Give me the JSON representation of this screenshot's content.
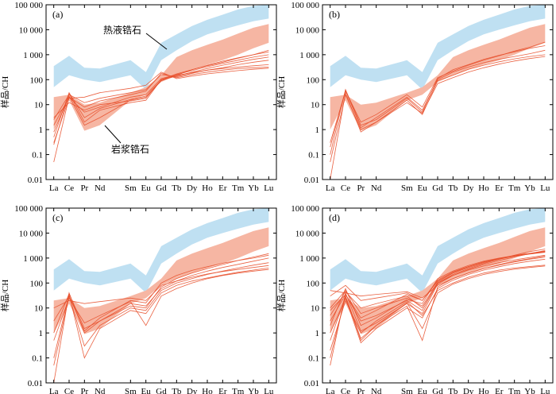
{
  "elements": [
    "La",
    "Ce",
    "Pr",
    "Nd",
    "Sm",
    "Eu",
    "Gd",
    "Tb",
    "Dy",
    "Ho",
    "Er",
    "Tm",
    "Yb",
    "Lu"
  ],
  "x_positions": [
    1,
    2,
    3,
    4,
    6,
    7,
    8,
    9,
    10,
    11,
    12,
    13,
    14,
    15
  ],
  "y_ticks": [
    {
      "v": 0.01,
      "label": "0.01"
    },
    {
      "v": 0.1,
      "label": "0.1"
    },
    {
      "v": 1,
      "label": "1"
    },
    {
      "v": 10,
      "label": "10"
    },
    {
      "v": 100,
      "label": "100"
    },
    {
      "v": 1000,
      "label": "1 000"
    },
    {
      "v": 10000,
      "label": "10 000"
    },
    {
      "v": 100000,
      "label": "100 000"
    }
  ],
  "ylabel": "样品/CH",
  "colors": {
    "hydro_field": "#bfe0f2",
    "magma_field": "#f6b6a3",
    "sample_line": "#e8502c",
    "axis": "#000000"
  },
  "annotations": {
    "hydrothermal": "热液锆石",
    "magmatic": "岩浆锆石"
  },
  "chart_data": [
    {
      "type": "line",
      "panel_label": "(a)",
      "ylim": [
        0.01,
        100000
      ],
      "scale": "log",
      "fields": {
        "hydrothermal": {
          "upper": [
            350,
            900,
            300,
            280,
            600,
            200,
            3000,
            6500,
            14000,
            25000,
            40000,
            65000,
            90000,
            100000
          ],
          "lower": [
            50,
            150,
            100,
            80,
            150,
            40,
            600,
            1500,
            3500,
            6500,
            10000,
            15000,
            22000,
            28000
          ]
        },
        "magmatic": {
          "upper": [
            20,
            25,
            10,
            12,
            30,
            50,
            150,
            800,
            1500,
            2500,
            4000,
            7000,
            12000,
            17000
          ],
          "lower": [
            1,
            15,
            0.9,
            1.5,
            15,
            25,
            80,
            150,
            250,
            400,
            600,
            1000,
            1800,
            3000
          ]
        }
      },
      "series": [
        {
          "values": [
            0.25,
            28,
            2.0,
            6,
            12,
            15,
            100,
            170,
            250,
            360,
            500,
            720,
            1000,
            1300
          ]
        },
        {
          "values": [
            0.05,
            20,
            5,
            8,
            20,
            25,
            110,
            160,
            230,
            330,
            450,
            600,
            800,
            1000
          ]
        },
        {
          "values": [
            0.5,
            30,
            3,
            7,
            16,
            22,
            95,
            140,
            200,
            280,
            380,
            500,
            650,
            800
          ]
        },
        {
          "values": [
            2.5,
            25,
            12,
            18,
            30,
            40,
            160,
            130,
            180,
            240,
            300,
            400,
            500,
            600
          ]
        },
        {
          "values": [
            1.5,
            20,
            8,
            14,
            25,
            35,
            180,
            120,
            160,
            200,
            240,
            280,
            300,
            320
          ]
        },
        {
          "values": [
            0.3,
            18,
            20,
            30,
            45,
            60,
            200,
            110,
            140,
            170,
            200,
            230,
            260,
            290
          ]
        },
        {
          "values": [
            3,
            12,
            6,
            10,
            14,
            18,
            100,
            150,
            190,
            240,
            280,
            320,
            360,
            400
          ]
        },
        {
          "values": [
            0.8,
            22,
            1.5,
            3,
            15,
            20,
            90,
            150,
            250,
            380,
            550,
            750,
            1000,
            1500
          ]
        }
      ]
    },
    {
      "type": "line",
      "panel_label": "(b)",
      "ylim": [
        0.01,
        100000
      ],
      "scale": "log",
      "fields": {
        "hydrothermal": {
          "upper": [
            350,
            900,
            300,
            280,
            600,
            200,
            3000,
            6500,
            14000,
            25000,
            40000,
            65000,
            90000,
            100000
          ],
          "lower": [
            50,
            150,
            100,
            80,
            150,
            40,
            600,
            1500,
            3500,
            6500,
            10000,
            15000,
            22000,
            28000
          ]
        },
        "magmatic": {
          "upper": [
            20,
            25,
            10,
            12,
            30,
            50,
            150,
            800,
            1500,
            2500,
            4000,
            7000,
            12000,
            17000
          ],
          "lower": [
            1,
            15,
            0.9,
            1.5,
            15,
            25,
            80,
            150,
            250,
            400,
            600,
            1000,
            1800,
            3000
          ]
        }
      },
      "series": [
        {
          "values": [
            0.2,
            38,
            1.2,
            3,
            20,
            6,
            100,
            200,
            320,
            480,
            650,
            850,
            1100,
            1500
          ]
        },
        {
          "values": [
            0.01,
            30,
            0.8,
            2,
            15,
            4,
            90,
            150,
            260,
            380,
            520,
            680,
            850,
            1000
          ]
        },
        {
          "values": [
            0.1,
            40,
            1.5,
            2.5,
            18,
            5,
            110,
            250,
            400,
            650,
            950,
            1300,
            1800,
            2300
          ]
        },
        {
          "values": [
            0.3,
            35,
            2,
            4,
            25,
            8,
            120,
            220,
            380,
            600,
            900,
            1400,
            2000,
            3200
          ]
        },
        {
          "values": [
            0.05,
            25,
            1,
            2,
            12,
            4.5,
            70,
            120,
            200,
            300,
            420,
            560,
            700,
            850
          ]
        }
      ]
    },
    {
      "type": "line",
      "panel_label": "(c)",
      "ylim": [
        0.01,
        100000
      ],
      "scale": "log",
      "fields": {
        "hydrothermal": {
          "upper": [
            350,
            900,
            300,
            280,
            600,
            200,
            3000,
            6500,
            14000,
            25000,
            40000,
            65000,
            90000,
            100000
          ],
          "lower": [
            50,
            150,
            100,
            80,
            150,
            40,
            600,
            1500,
            3500,
            6500,
            10000,
            15000,
            22000,
            28000
          ]
        },
        "magmatic": {
          "upper": [
            20,
            25,
            10,
            12,
            30,
            50,
            150,
            800,
            1500,
            2500,
            4000,
            7000,
            12000,
            17000
          ],
          "lower": [
            1,
            15,
            0.9,
            1.5,
            15,
            25,
            80,
            150,
            250,
            400,
            600,
            1000,
            1800,
            3000
          ]
        }
      },
      "series": [
        {
          "values": [
            0.01,
            40,
            1.0,
            3,
            15,
            12,
            60,
            120,
            200,
            300,
            420,
            560,
            750,
            1000
          ]
        },
        {
          "values": [
            0.05,
            30,
            0.3,
            2,
            10,
            8,
            50,
            100,
            150,
            220,
            300,
            400,
            520,
            650
          ]
        },
        {
          "values": [
            0.1,
            35,
            0.1,
            1.5,
            8,
            6,
            40,
            80,
            120,
            160,
            210,
            270,
            330,
            400
          ]
        },
        {
          "values": [
            1,
            38,
            1.5,
            3,
            12,
            10,
            70,
            150,
            250,
            380,
            550,
            800,
            1100,
            1500
          ]
        },
        {
          "values": [
            10,
            20,
            15,
            18,
            25,
            20,
            80,
            120,
            170,
            230,
            290,
            350,
            420,
            500
          ]
        },
        {
          "values": [
            3,
            30,
            1.2,
            4,
            20,
            16,
            100,
            200,
            320,
            450,
            620,
            800,
            1000,
            1300
          ]
        },
        {
          "values": [
            0.5,
            25,
            2.5,
            5,
            18,
            2,
            30,
            60,
            100,
            150,
            200,
            250,
            300,
            350
          ]
        }
      ]
    },
    {
      "type": "line",
      "panel_label": "(d)",
      "ylim": [
        0.01,
        100000
      ],
      "scale": "log",
      "fields": {
        "hydrothermal": {
          "upper": [
            350,
            900,
            300,
            280,
            600,
            200,
            3000,
            6500,
            14000,
            25000,
            40000,
            65000,
            90000,
            100000
          ],
          "lower": [
            50,
            150,
            100,
            80,
            150,
            40,
            600,
            1500,
            3500,
            6500,
            10000,
            15000,
            22000,
            28000
          ]
        },
        "magmatic": {
          "upper": [
            20,
            25,
            10,
            12,
            30,
            50,
            150,
            800,
            1500,
            2500,
            4000,
            7000,
            12000,
            17000
          ],
          "lower": [
            1,
            15,
            0.9,
            1.5,
            15,
            25,
            80,
            150,
            250,
            400,
            600,
            1000,
            1800,
            3000
          ]
        }
      },
      "series": [
        {
          "values": [
            0.05,
            40,
            1.2,
            2.5,
            15,
            6,
            90,
            200,
            350,
            550,
            800,
            1100,
            1500,
            2000
          ]
        },
        {
          "values": [
            0.5,
            30,
            0.5,
            2,
            12,
            0.5,
            70,
            150,
            250,
            380,
            550,
            750,
            950,
            1200
          ]
        },
        {
          "values": [
            3,
            35,
            3,
            5,
            20,
            8,
            100,
            220,
            380,
            600,
            900,
            1300,
            1800,
            2300
          ]
        },
        {
          "values": [
            10,
            50,
            6,
            10,
            25,
            12,
            110,
            250,
            420,
            650,
            900,
            1200,
            1500,
            1800
          ]
        },
        {
          "values": [
            30,
            80,
            20,
            25,
            40,
            20,
            120,
            260,
            450,
            700,
            950,
            1250,
            1550,
            1900
          ]
        },
        {
          "values": [
            1,
            25,
            0.4,
            1.5,
            10,
            4,
            60,
            130,
            220,
            330,
            450,
            600,
            750,
            900
          ]
        },
        {
          "values": [
            5,
            45,
            10,
            15,
            30,
            10,
            100,
            200,
            330,
            480,
            650,
            850,
            1050,
            1300
          ]
        },
        {
          "values": [
            0.2,
            20,
            1,
            3,
            18,
            5,
            50,
            100,
            170,
            250,
            330,
            400,
            460,
            520
          ]
        },
        {
          "values": [
            50,
            40,
            30,
            35,
            45,
            25,
            80,
            150,
            250,
            380,
            520,
            700,
            900,
            1100
          ]
        },
        {
          "values": [
            2,
            60,
            2,
            4,
            22,
            15,
            150,
            300,
            500,
            750,
            1000,
            1250,
            1500,
            1800
          ]
        },
        {
          "values": [
            0.1,
            30,
            0.6,
            2,
            16,
            1.5,
            40,
            90,
            150,
            220,
            290,
            360,
            420,
            480
          ]
        },
        {
          "values": [
            8,
            35,
            4,
            8,
            35,
            20,
            130,
            280,
            460,
            700,
            950,
            1200,
            1450,
            1700
          ]
        }
      ]
    }
  ]
}
